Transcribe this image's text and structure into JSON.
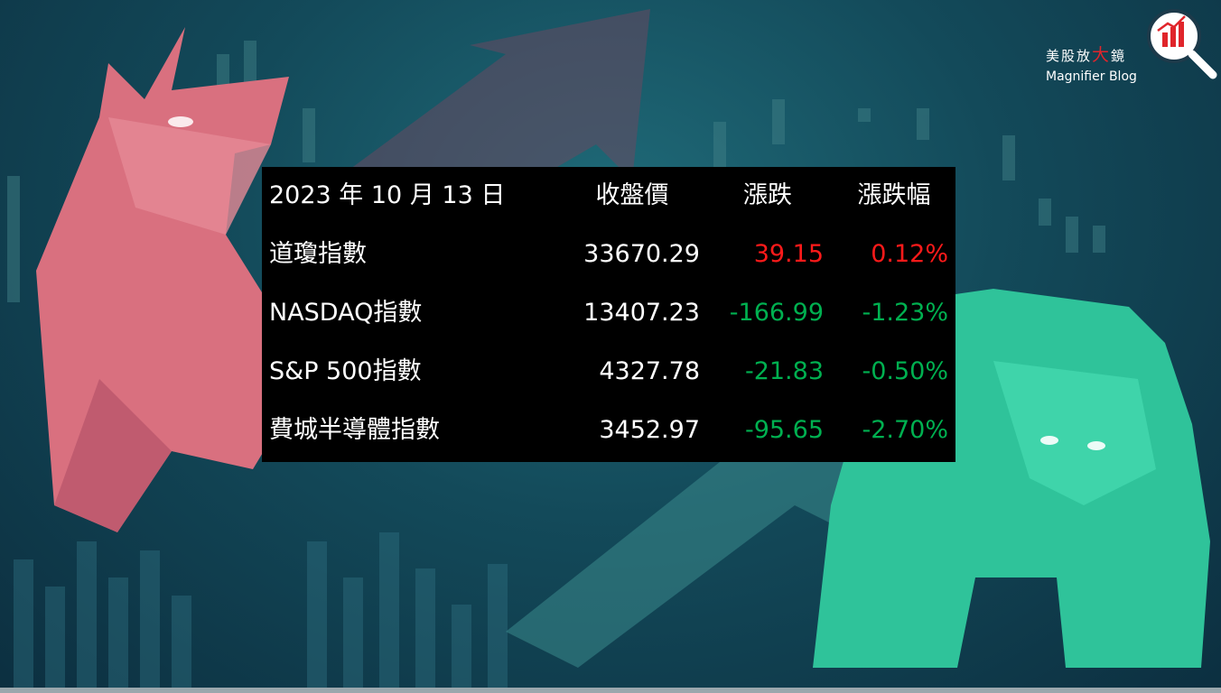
{
  "logo": {
    "name_parts": [
      "美股放",
      "大",
      "鏡"
    ],
    "subtitle": "Magnifier Blog"
  },
  "table": {
    "header": [
      "2023 年 10 月 13 日",
      "收盤價",
      "漲跌",
      "漲跌幅"
    ],
    "rows": [
      [
        "道瓊指數",
        "33670.29",
        "39.15",
        "0.12%"
      ],
      [
        "NASDAQ指數",
        "13407.23",
        "-166.99",
        "-1.23%"
      ],
      [
        "S&P 500指數",
        "4327.78",
        "-21.83",
        "-0.50%"
      ],
      [
        "費城半導體指數",
        "3452.97",
        "-95.65",
        "-2.70%"
      ]
    ]
  }
}
